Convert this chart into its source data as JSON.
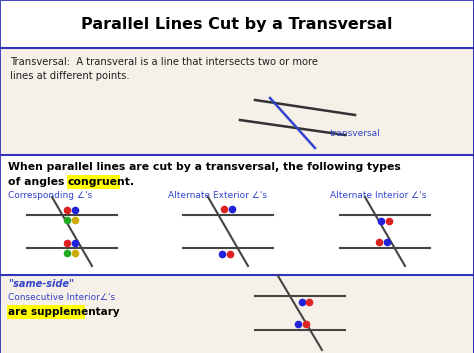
{
  "title": "Parallel Lines Cut by a Transversal",
  "bg_outer": "#f5f0e8",
  "bg_white": "#ffffff",
  "bg_cream": "#f5f0e8",
  "border_color": "#3333bb",
  "text_dark": "#222222",
  "text_blue": "#3344cc",
  "text_gray": "#333333",
  "section1_line1": "Transversal:  A transveral is a line that intersects two or more",
  "section1_line2": "lines at different points.",
  "transversal_label": "transversal",
  "sec2_line1": "When parallel lines are cut by a transversal, the following types",
  "sec2_line2a": "of angles are ",
  "sec2_congruent": "congruent.",
  "label1": "Corresponding ∠'s",
  "label2": "Alternate Exterior ∠'s",
  "label3": "Alternate Interior ∠'s",
  "sec3_line1": "\"same-side\"",
  "sec3_line2": "Consecutive Interior∠'s",
  "sec3_line3": "are supplementary",
  "yellow": "#ffff00",
  "red": "#dd2222",
  "blue": "#2222dd",
  "green": "#22aa22",
  "gold": "#ccaa00"
}
